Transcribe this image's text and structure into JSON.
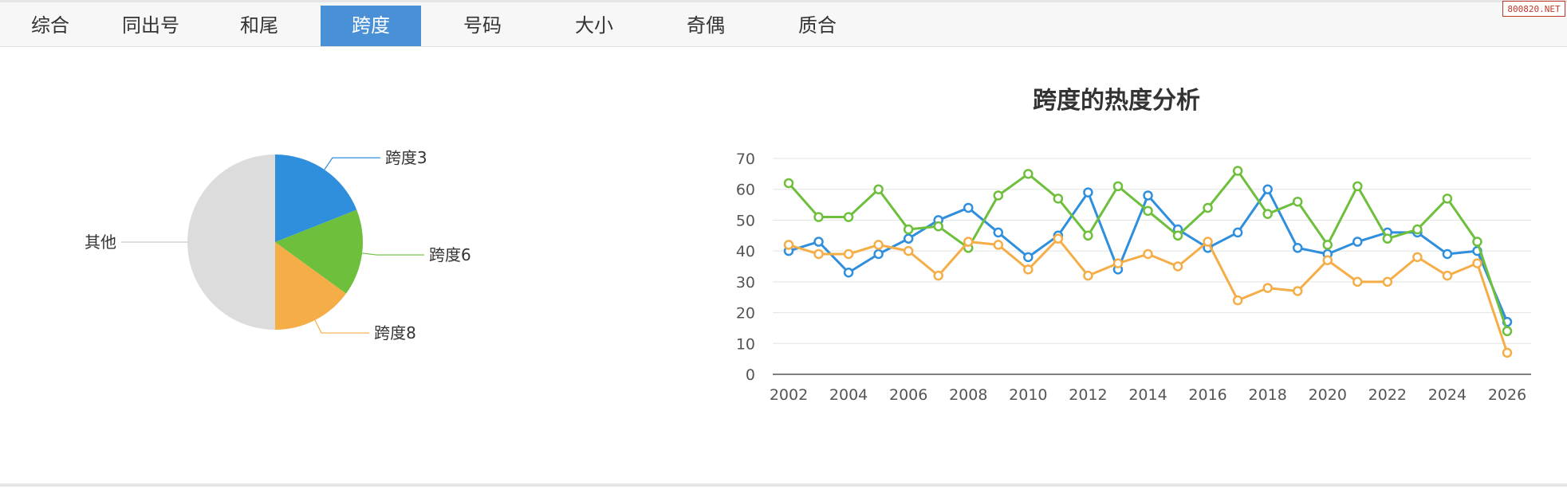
{
  "tabs": [
    {
      "label": "综合",
      "active": false
    },
    {
      "label": "同出号",
      "active": false
    },
    {
      "label": "和尾",
      "active": false
    },
    {
      "label": "跨度",
      "active": true
    },
    {
      "label": "号码",
      "active": false
    },
    {
      "label": "大小",
      "active": false
    },
    {
      "label": "奇偶",
      "active": false
    },
    {
      "label": "质合",
      "active": false
    }
  ],
  "watermark": "800820.NET",
  "colors": {
    "accent": "#4a90d6",
    "blue": "#2f8fdc",
    "green": "#6dbf3c",
    "orange": "#f5ad47",
    "gray": "#dcdcdc"
  },
  "chart_data": [
    {
      "type": "pie",
      "slices": [
        {
          "label": "跨度3",
          "value": 19,
          "color": "#2f8fdc"
        },
        {
          "label": "跨度6",
          "value": 16,
          "color": "#6dbf3c"
        },
        {
          "label": "跨度8",
          "value": 15,
          "color": "#f5ad47"
        },
        {
          "label": "其他",
          "value": 50,
          "color": "#dcdcdc"
        }
      ]
    },
    {
      "type": "line",
      "title": "跨度的热度分析",
      "x": [
        2002,
        2003,
        2004,
        2005,
        2006,
        2007,
        2008,
        2009,
        2010,
        2011,
        2012,
        2013,
        2014,
        2015,
        2016,
        2017,
        2018,
        2019,
        2020,
        2021,
        2022,
        2023,
        2024,
        2025,
        2026
      ],
      "xticks": [
        2002,
        2004,
        2006,
        2008,
        2010,
        2012,
        2014,
        2016,
        2018,
        2020,
        2022,
        2024,
        2026
      ],
      "yticks": [
        0,
        10,
        20,
        30,
        40,
        50,
        60,
        70
      ],
      "ylim": [
        0,
        70
      ],
      "grid": true,
      "series": [
        {
          "color": "#2f8fdc",
          "values": [
            40,
            43,
            33,
            39,
            44,
            50,
            54,
            46,
            38,
            45,
            59,
            34,
            58,
            47,
            41,
            46,
            60,
            41,
            39,
            43,
            46,
            46,
            39,
            40,
            17
          ]
        },
        {
          "color": "#6dbf3c",
          "values": [
            62,
            51,
            51,
            60,
            47,
            48,
            41,
            58,
            65,
            57,
            45,
            61,
            53,
            45,
            54,
            66,
            52,
            56,
            42,
            61,
            44,
            47,
            57,
            43,
            14
          ]
        },
        {
          "color": "#f5ad47",
          "values": [
            42,
            39,
            39,
            42,
            40,
            32,
            43,
            42,
            34,
            44,
            32,
            36,
            39,
            35,
            43,
            24,
            28,
            27,
            37,
            30,
            30,
            38,
            32,
            36,
            7
          ]
        }
      ]
    }
  ]
}
